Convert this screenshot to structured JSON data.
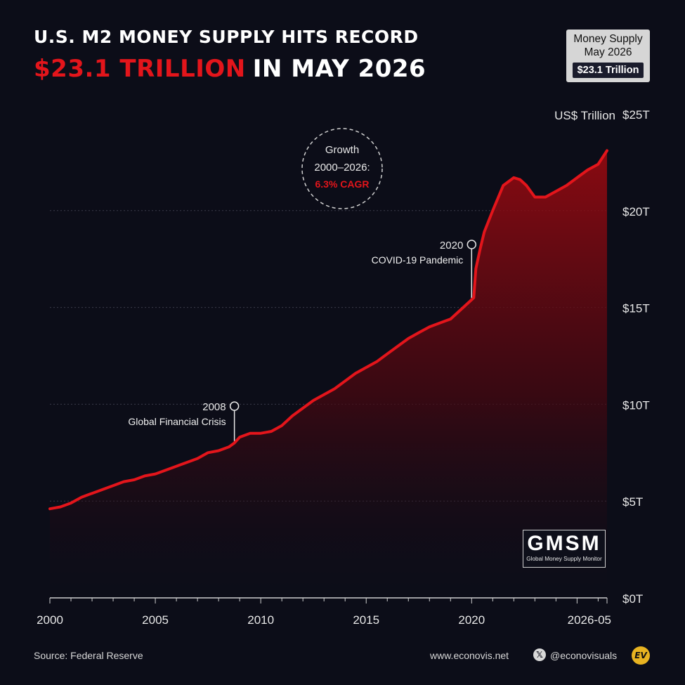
{
  "header": {
    "title_line1": "U.S. M2 MONEY SUPPLY HITS RECORD",
    "title_highlight": "$23.1 TRILLION",
    "title_rest": "IN MAY 2026"
  },
  "badge": {
    "line1": "Money Supply",
    "line2": "May 2026",
    "value": "$23.1 Trillion"
  },
  "growth_note": {
    "line1": "Growth",
    "line2": "2000–2026:",
    "cagr": "6.3% CAGR"
  },
  "logo": {
    "text": "GMSM",
    "subtitle": "Global Money Supply Monitor"
  },
  "footer": {
    "source": "Source: Federal Reserve",
    "site": "www.econovis.net",
    "x_icon": "x-logo-icon",
    "handle": "@econovisuals",
    "brand": "EV"
  },
  "colors": {
    "line": "#e3151b",
    "accent": "#e3151b",
    "background": "#0c0d18",
    "grid": "#3a3c4a",
    "text": "#ffffff"
  },
  "chart_data": {
    "type": "area",
    "unit_label": "US$ Trillion",
    "xlim": [
      2000,
      2026.42
    ],
    "ylim": [
      0,
      25
    ],
    "y_ticks": [
      0,
      5,
      10,
      15,
      20,
      25
    ],
    "y_tick_labels": [
      "$0T",
      "$5T",
      "$10T",
      "$15T",
      "$20T",
      "$25T"
    ],
    "x_tick_values": [
      2000,
      2005,
      2010,
      2015,
      2020,
      2026.42
    ],
    "x_tick_labels": [
      "2000",
      "2005",
      "2010",
      "2015",
      "2020",
      "2026-05"
    ],
    "grid": true,
    "series": [
      {
        "x": [
          2000.0,
          2000.5,
          2001.0,
          2001.5,
          2002.0,
          2002.5,
          2003.0,
          2003.5,
          2004.0,
          2004.5,
          2005.0,
          2005.5,
          2006.0,
          2006.5,
          2007.0,
          2007.5,
          2008.0,
          2008.5,
          2008.75,
          2009.0,
          2009.5,
          2010.0,
          2010.5,
          2011.0,
          2011.5,
          2012.0,
          2012.5,
          2013.0,
          2013.5,
          2014.0,
          2014.5,
          2015.0,
          2015.5,
          2016.0,
          2016.5,
          2017.0,
          2017.5,
          2018.0,
          2018.5,
          2019.0,
          2019.5,
          2020.0,
          2020.1,
          2020.2,
          2020.4,
          2020.6,
          2021.0,
          2021.5,
          2022.0,
          2022.3,
          2022.6,
          2023.0,
          2023.5,
          2024.0,
          2024.5,
          2025.0,
          2025.5,
          2026.0,
          2026.42
        ],
        "values": [
          4.6,
          4.7,
          4.9,
          5.2,
          5.4,
          5.6,
          5.8,
          6.0,
          6.1,
          6.3,
          6.4,
          6.6,
          6.8,
          7.0,
          7.2,
          7.5,
          7.6,
          7.8,
          8.0,
          8.3,
          8.5,
          8.5,
          8.6,
          8.9,
          9.4,
          9.8,
          10.2,
          10.5,
          10.8,
          11.2,
          11.6,
          11.9,
          12.2,
          12.6,
          13.0,
          13.4,
          13.7,
          14.0,
          14.2,
          14.4,
          14.9,
          15.4,
          15.5,
          17.0,
          18.0,
          18.9,
          20.0,
          21.3,
          21.7,
          21.6,
          21.3,
          20.7,
          20.7,
          21.0,
          21.3,
          21.7,
          22.1,
          22.4,
          23.1
        ]
      }
    ],
    "annotations": [
      {
        "year": "2008",
        "label": "Global Financial Crisis",
        "x": 2008.75,
        "y": 8.0,
        "marker_y": 9.9
      },
      {
        "year": "2020",
        "label": "COVID-19 Pandemic",
        "x": 2020.0,
        "y": 15.4,
        "marker_y": 18.25
      }
    ]
  }
}
